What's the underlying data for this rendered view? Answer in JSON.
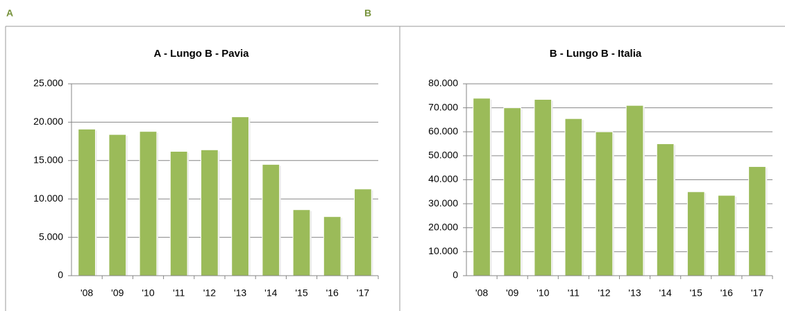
{
  "panel_labels": [
    "A",
    "B"
  ],
  "chart_data": [
    {
      "type": "bar",
      "title": "A - Lungo B - Pavia",
      "color": "#9bbb59",
      "grid": true,
      "categories": [
        "'08",
        "'09",
        "'10",
        "'11",
        "'12",
        "'13",
        "'14",
        "'15",
        "'16",
        "'17"
      ],
      "values": [
        19100,
        18400,
        18800,
        16200,
        16400,
        20700,
        14500,
        8600,
        7700,
        11300
      ],
      "ylim": [
        0,
        25000
      ],
      "yticks": [
        0,
        {
          "value": 5000,
          "label": "5.000"
        },
        {
          "value": 10000,
          "label": "10.000"
        },
        {
          "value": 15000,
          "label": "15.000"
        },
        {
          "value": 20000,
          "label": "20.000"
        },
        {
          "value": 25000,
          "label": "25.000"
        }
      ]
    },
    {
      "type": "bar",
      "title": "B - Lungo B - Italia",
      "color": "#9bbb59",
      "grid": true,
      "categories": [
        "'08",
        "'09",
        "'10",
        "'11",
        "'12",
        "'13",
        "'14",
        "'15",
        "'16",
        "'17"
      ],
      "values": [
        74000,
        70000,
        73500,
        65500,
        60000,
        71000,
        55000,
        35000,
        33500,
        45500
      ],
      "ylim": [
        0,
        80000
      ],
      "yticks": [
        0,
        {
          "value": 10000,
          "label": "10.000"
        },
        {
          "value": 20000,
          "label": "20.000"
        },
        {
          "value": 30000,
          "label": "30.000"
        },
        {
          "value": 40000,
          "label": "40.000"
        },
        {
          "value": 50000,
          "label": "50.000"
        },
        {
          "value": 60000,
          "label": "60.000"
        },
        {
          "value": 70000,
          "label": "70.000"
        },
        {
          "value": 80000,
          "label": "80.000"
        }
      ]
    }
  ]
}
